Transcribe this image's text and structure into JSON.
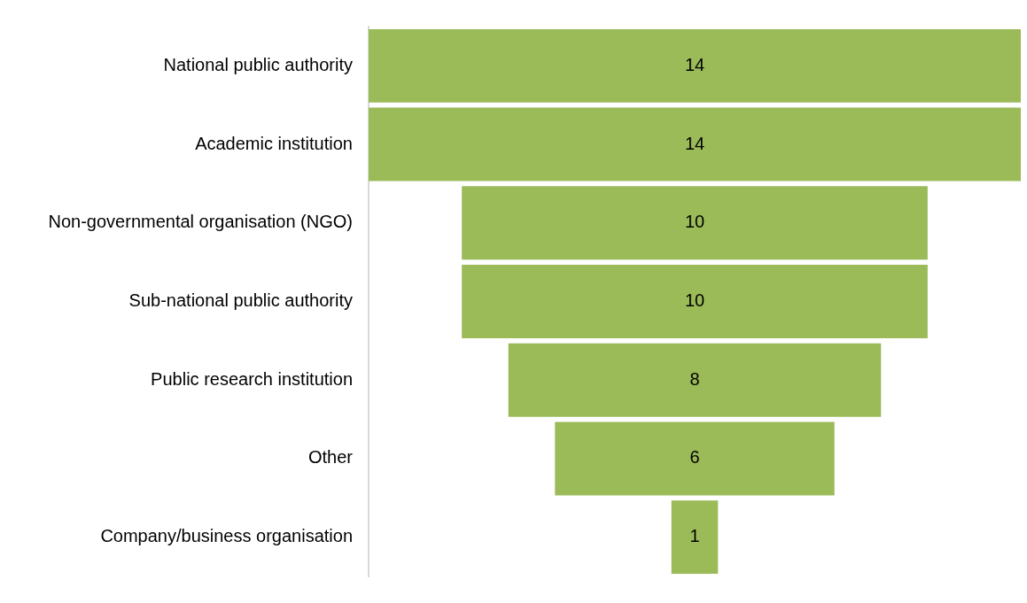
{
  "chart_data": {
    "type": "other",
    "categories": [
      "National public authority",
      "Academic institution",
      "Non-governmental organisation (NGO)",
      "Sub-national public authority",
      "Public research institution",
      "Other",
      "Company/business organisation"
    ],
    "values": [
      14,
      14,
      10,
      10,
      8,
      6,
      1
    ],
    "color": "#9bbb59",
    "data_labels": true
  }
}
